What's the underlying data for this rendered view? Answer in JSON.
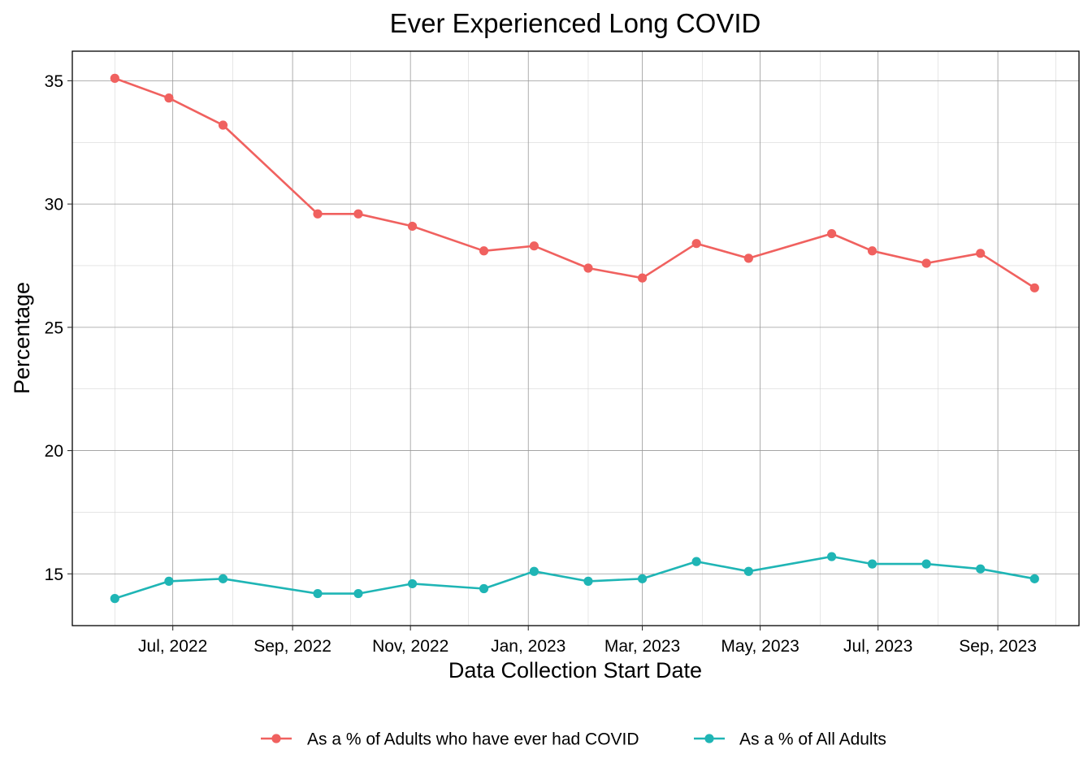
{
  "chart_data": {
    "type": "line",
    "title": "Ever Experienced Long COVID",
    "xlabel": "Data Collection Start Date",
    "ylabel": "Percentage",
    "x": [
      "2022-06-01",
      "2022-06-29",
      "2022-07-27",
      "2022-09-14",
      "2022-10-05",
      "2022-11-02",
      "2022-12-09",
      "2023-01-04",
      "2023-02-01",
      "2023-03-01",
      "2023-03-29",
      "2023-04-25",
      "2023-06-07",
      "2023-06-28",
      "2023-07-26",
      "2023-08-23",
      "2023-09-20"
    ],
    "series": [
      {
        "name": "As a % of Adults who have ever had COVID",
        "color": "#f0615f",
        "values": [
          35.1,
          34.3,
          33.2,
          29.6,
          29.6,
          29.1,
          28.1,
          28.3,
          27.4,
          27.0,
          28.4,
          27.8,
          28.8,
          28.1,
          27.6,
          28.0,
          26.6
        ]
      },
      {
        "name": "As a % of All Adults",
        "color": "#1fb5b5",
        "values": [
          14.0,
          14.7,
          14.8,
          14.2,
          14.2,
          14.6,
          14.4,
          15.1,
          14.7,
          14.8,
          15.5,
          15.1,
          15.7,
          15.4,
          15.4,
          15.2,
          14.8
        ]
      }
    ],
    "ylim": [
      12.9,
      36.2
    ],
    "yticks": [
      15,
      20,
      25,
      30,
      35
    ],
    "ytick_labels": [
      "15",
      "20",
      "25",
      "30",
      "35"
    ],
    "xlim": [
      "2022-05-10",
      "2023-10-13"
    ],
    "xticks": [
      "2022-07-01",
      "2022-09-01",
      "2022-11-01",
      "2023-01-01",
      "2023-03-01",
      "2023-05-01",
      "2023-07-01",
      "2023-09-01"
    ],
    "xtick_labels": [
      "Jul, 2022",
      "Sep, 2022",
      "Nov, 2022",
      "Jan, 2023",
      "Mar, 2023",
      "May, 2023",
      "Jul, 2023",
      "Sep, 2023"
    ],
    "x_minor_ticks": [
      "2022-06-01",
      "2022-08-01",
      "2022-10-01",
      "2022-12-01",
      "2023-02-01",
      "2023-04-01",
      "2023-06-01",
      "2023-08-01",
      "2023-10-01"
    ],
    "grid": true,
    "legend": "bottom"
  }
}
